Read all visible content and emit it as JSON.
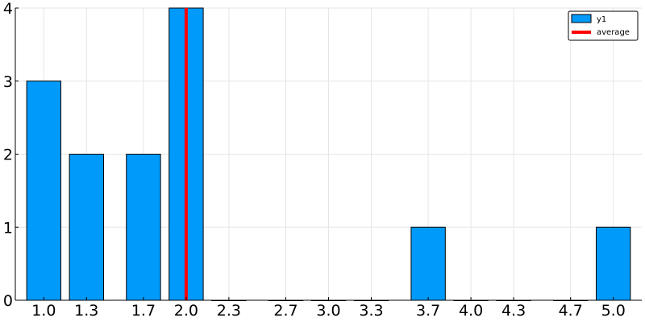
{
  "chart_data": {
    "type": "bar",
    "x": [
      1.0,
      1.3,
      1.7,
      2.0,
      2.3,
      2.7,
      3.0,
      3.3,
      3.7,
      4.0,
      4.3,
      4.7,
      5.0
    ],
    "x_tick_labels": [
      "1.0",
      "1.3",
      "1.7",
      "2.0",
      "2.3",
      "2.7",
      "3.0",
      "3.3",
      "3.7",
      "4.0",
      "4.3",
      "4.7",
      "5.0"
    ],
    "values": [
      3,
      2,
      2,
      4,
      0,
      0,
      0,
      0,
      1,
      0,
      0,
      0,
      1
    ],
    "series": [
      {
        "name": "y1",
        "color": "#009AFA"
      }
    ],
    "reference_line": {
      "name": "average",
      "x": 2.0,
      "color": "#FF0000"
    },
    "y_tick_labels": [
      "0",
      "1",
      "2",
      "3",
      "4"
    ],
    "y_ticks": [
      0,
      1,
      2,
      3,
      4
    ],
    "xlim": [
      0.8,
      5.2
    ],
    "ylim": [
      0,
      4
    ],
    "grid": true,
    "legend_position": "top-right",
    "title": "",
    "xlabel": "",
    "ylabel": ""
  }
}
